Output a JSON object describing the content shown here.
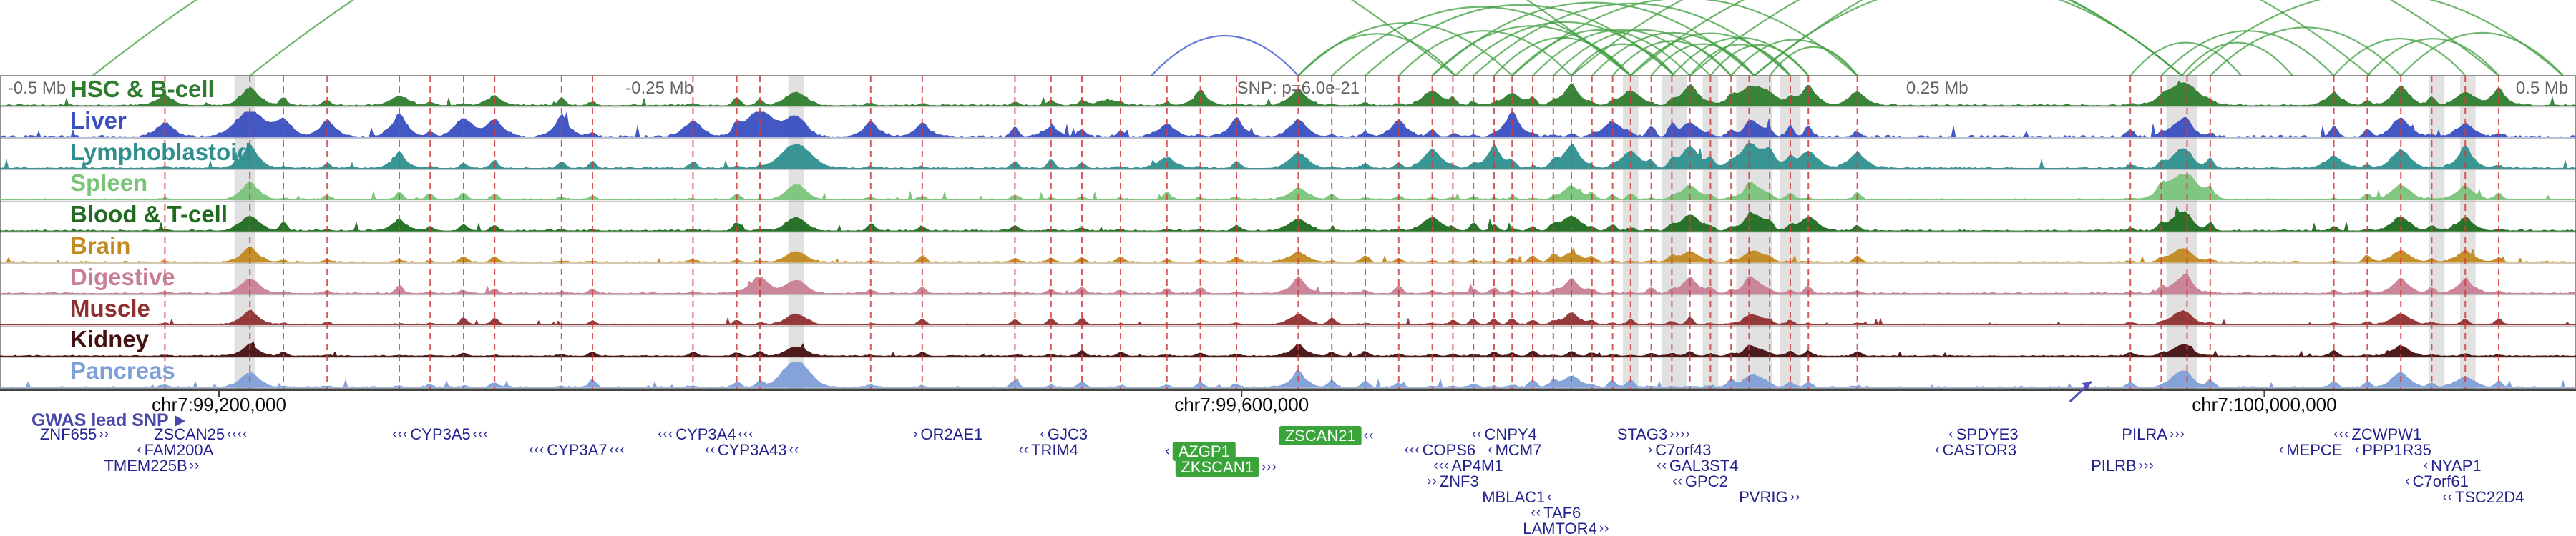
{
  "chart_data": {
    "type": "area",
    "title": "Chromatin accessibility tracks and interaction arcs around GWAS lead SNP (chr7 locus)",
    "noise_seed": 42,
    "colors": {
      "band": "#c9c9c9",
      "snp_line": "#d43c3c",
      "arc_green": "#3d9e3d",
      "arc_blue": "#3050c8",
      "gene_text": "#23238f",
      "gene_highlight": "#3aa33a",
      "axis": "#444444",
      "pointer": "#5353b5"
    },
    "scale_labels": [
      {
        "text": "-0.5 Mb",
        "f": 0.003,
        "align": "left"
      },
      {
        "text": "-0.25 Mb",
        "f": 0.256,
        "align": "center"
      },
      {
        "text": "SNP: p=6.0e-21",
        "f": 0.504,
        "align": "center"
      },
      {
        "text": "0.25 Mb",
        "f": 0.752,
        "align": "center"
      },
      {
        "text": "0.5 Mb",
        "f": 0.997,
        "align": "right"
      }
    ],
    "tracks": [
      {
        "name": "HSC & B-cell",
        "color": "#2e7d2e",
        "noise": 1.0,
        "peaks": [
          [
            0.064,
            0.25
          ],
          [
            0.097,
            0.55
          ],
          [
            0.155,
            0.3
          ],
          [
            0.192,
            0.2
          ],
          [
            0.309,
            0.5
          ],
          [
            0.43,
            0.2
          ],
          [
            0.466,
            0.3
          ],
          [
            0.504,
            0.45
          ],
          [
            0.556,
            0.5
          ],
          [
            0.587,
            0.4
          ],
          [
            0.61,
            0.55
          ],
          [
            0.633,
            0.5
          ],
          [
            0.656,
            0.6
          ],
          [
            0.681,
            0.7,
            10
          ],
          [
            0.702,
            0.5
          ],
          [
            0.721,
            0.4
          ],
          [
            0.847,
            0.8,
            10
          ],
          [
            0.906,
            0.3
          ],
          [
            0.932,
            0.55
          ],
          [
            0.957,
            0.45
          ],
          [
            0.97,
            0.35
          ]
        ]
      },
      {
        "name": "Liver",
        "color": "#3a4fc0",
        "noise": 1.2,
        "peaks": [
          [
            0.064,
            0.4
          ],
          [
            0.097,
            0.9,
            9
          ],
          [
            0.11,
            0.5
          ],
          [
            0.127,
            0.4
          ],
          [
            0.155,
            0.55
          ],
          [
            0.18,
            0.6
          ],
          [
            0.192,
            0.5
          ],
          [
            0.218,
            0.45
          ],
          [
            0.269,
            0.5
          ],
          [
            0.295,
            0.95,
            9
          ],
          [
            0.309,
            0.75
          ],
          [
            0.338,
            0.35
          ],
          [
            0.358,
            0.3
          ],
          [
            0.408,
            0.25
          ],
          [
            0.453,
            0.35
          ],
          [
            0.48,
            0.4
          ],
          [
            0.504,
            0.5
          ],
          [
            0.543,
            0.4
          ],
          [
            0.587,
            0.55
          ],
          [
            0.626,
            0.5
          ],
          [
            0.656,
            0.45
          ],
          [
            0.681,
            0.5
          ],
          [
            0.847,
            0.6
          ],
          [
            0.932,
            0.6
          ],
          [
            0.957,
            0.4
          ]
        ]
      },
      {
        "name": "Lymphoblastoid",
        "color": "#2f8f8f",
        "noise": 1.0,
        "peaks": [
          [
            0.097,
            0.6
          ],
          [
            0.155,
            0.3
          ],
          [
            0.309,
            0.9,
            9
          ],
          [
            0.453,
            0.3
          ],
          [
            0.504,
            0.5
          ],
          [
            0.556,
            0.6
          ],
          [
            0.58,
            0.5
          ],
          [
            0.61,
            0.65
          ],
          [
            0.633,
            0.55
          ],
          [
            0.656,
            0.7
          ],
          [
            0.681,
            0.75,
            10
          ],
          [
            0.702,
            0.55
          ],
          [
            0.721,
            0.45
          ],
          [
            0.847,
            0.7
          ],
          [
            0.906,
            0.35
          ],
          [
            0.932,
            0.6
          ],
          [
            0.957,
            0.5
          ]
        ]
      },
      {
        "name": "Spleen",
        "color": "#7ac47a",
        "noise": 0.8,
        "peaks": [
          [
            0.097,
            0.5
          ],
          [
            0.309,
            0.55
          ],
          [
            0.504,
            0.35
          ],
          [
            0.61,
            0.4
          ],
          [
            0.656,
            0.45
          ],
          [
            0.681,
            0.5
          ],
          [
            0.847,
            0.9,
            10
          ],
          [
            0.932,
            0.5
          ],
          [
            0.957,
            0.4
          ]
        ]
      },
      {
        "name": "Blood & T-cell",
        "color": "#1f6b1f",
        "noise": 0.9,
        "peaks": [
          [
            0.097,
            0.5
          ],
          [
            0.155,
            0.25
          ],
          [
            0.309,
            0.5
          ],
          [
            0.504,
            0.4
          ],
          [
            0.556,
            0.45
          ],
          [
            0.61,
            0.5
          ],
          [
            0.656,
            0.55
          ],
          [
            0.681,
            0.6
          ],
          [
            0.702,
            0.45
          ],
          [
            0.847,
            0.7
          ],
          [
            0.932,
            0.45
          ],
          [
            0.957,
            0.35
          ]
        ]
      },
      {
        "name": "Brain",
        "color": "#c28a20",
        "noise": 0.7,
        "peaks": [
          [
            0.097,
            0.4
          ],
          [
            0.309,
            0.4
          ],
          [
            0.504,
            0.3
          ],
          [
            0.61,
            0.3
          ],
          [
            0.656,
            0.35
          ],
          [
            0.681,
            0.4
          ],
          [
            0.847,
            0.5
          ],
          [
            0.932,
            0.35
          ],
          [
            0.957,
            0.3
          ]
        ]
      },
      {
        "name": "Digestive",
        "color": "#c87f93",
        "noise": 0.8,
        "peaks": [
          [
            0.097,
            0.5
          ],
          [
            0.295,
            0.55
          ],
          [
            0.309,
            0.5
          ],
          [
            0.504,
            0.35
          ],
          [
            0.61,
            0.35
          ],
          [
            0.656,
            0.4
          ],
          [
            0.681,
            0.45
          ],
          [
            0.847,
            0.55
          ],
          [
            0.932,
            0.4
          ],
          [
            0.957,
            0.35
          ]
        ]
      },
      {
        "name": "Muscle",
        "color": "#8f2f2f",
        "noise": 0.7,
        "peaks": [
          [
            0.097,
            0.4
          ],
          [
            0.309,
            0.4
          ],
          [
            0.504,
            0.3
          ],
          [
            0.61,
            0.3
          ],
          [
            0.681,
            0.35
          ],
          [
            0.847,
            0.5
          ],
          [
            0.932,
            0.35
          ]
        ]
      },
      {
        "name": "Kidney",
        "color": "#451010",
        "noise": 0.6,
        "peaks": [
          [
            0.097,
            0.3
          ],
          [
            0.309,
            0.35
          ],
          [
            0.504,
            0.25
          ],
          [
            0.681,
            0.3
          ],
          [
            0.847,
            0.4
          ],
          [
            0.932,
            0.3
          ]
        ]
      },
      {
        "name": "Pancreas",
        "color": "#7f9fd8",
        "noise": 0.8,
        "peaks": [
          [
            0.097,
            0.5
          ],
          [
            0.309,
            1.0,
            8
          ],
          [
            0.504,
            0.35
          ],
          [
            0.61,
            0.35
          ],
          [
            0.681,
            0.45
          ],
          [
            0.847,
            0.6
          ],
          [
            0.932,
            0.45
          ],
          [
            0.957,
            0.35
          ]
        ]
      }
    ],
    "snp_lines": [
      0.064,
      0.097,
      0.11,
      0.127,
      0.155,
      0.167,
      0.18,
      0.192,
      0.218,
      0.23,
      0.269,
      0.286,
      0.295,
      0.338,
      0.358,
      0.394,
      0.408,
      0.42,
      0.435,
      0.453,
      0.466,
      0.48,
      0.504,
      0.517,
      0.53,
      0.543,
      0.556,
      0.564,
      0.572,
      0.58,
      0.587,
      0.595,
      0.603,
      0.61,
      0.618,
      0.626,
      0.633,
      0.641,
      0.649,
      0.656,
      0.664,
      0.672,
      0.679,
      0.687,
      0.695,
      0.702,
      0.721,
      0.827,
      0.839,
      0.849,
      0.858,
      0.906,
      0.919,
      0.932,
      0.944,
      0.957,
      0.97
    ],
    "bands": [
      [
        0.095,
        0.008
      ],
      [
        0.309,
        0.006
      ],
      [
        0.633,
        0.006
      ],
      [
        0.65,
        0.01
      ],
      [
        0.664,
        0.006
      ],
      [
        0.681,
        0.014
      ],
      [
        0.695,
        0.008
      ],
      [
        0.847,
        0.012
      ],
      [
        0.946,
        0.006
      ],
      [
        0.958,
        0.006
      ]
    ],
    "arcs": [
      [
        0.036,
        0.565,
        "g"
      ],
      [
        0.097,
        0.633,
        "g"
      ],
      [
        0.447,
        0.504,
        "b"
      ],
      [
        0.504,
        0.565,
        "g"
      ],
      [
        0.504,
        0.587,
        "g"
      ],
      [
        0.517,
        0.633,
        "g"
      ],
      [
        0.53,
        0.65,
        "g"
      ],
      [
        0.543,
        0.61,
        "g"
      ],
      [
        0.556,
        0.633,
        "g"
      ],
      [
        0.556,
        0.681,
        "g"
      ],
      [
        0.565,
        0.65,
        "g"
      ],
      [
        0.572,
        0.695,
        "g"
      ],
      [
        0.58,
        0.633,
        "g"
      ],
      [
        0.587,
        0.656,
        "g"
      ],
      [
        0.587,
        0.721,
        "g"
      ],
      [
        0.595,
        0.664,
        "g"
      ],
      [
        0.603,
        0.672,
        "g"
      ],
      [
        0.61,
        0.65,
        "g"
      ],
      [
        0.61,
        0.847,
        "g"
      ],
      [
        0.618,
        0.681,
        "g"
      ],
      [
        0.626,
        0.672,
        "g"
      ],
      [
        0.633,
        0.695,
        "g"
      ],
      [
        0.633,
        0.847,
        "g"
      ],
      [
        0.641,
        0.681,
        "g"
      ],
      [
        0.649,
        0.702,
        "g"
      ],
      [
        0.656,
        0.695,
        "g"
      ],
      [
        0.656,
        0.92,
        "g"
      ],
      [
        0.664,
        0.702,
        "g"
      ],
      [
        0.672,
        0.721,
        "g"
      ],
      [
        0.681,
        0.97,
        "g"
      ],
      [
        0.687,
        0.721,
        "g"
      ],
      [
        0.681,
        0.847,
        "g"
      ],
      [
        0.827,
        0.87,
        "g"
      ],
      [
        0.839,
        0.906,
        "g"
      ],
      [
        0.847,
        0.89,
        "g"
      ],
      [
        0.849,
        0.995,
        "g"
      ],
      [
        0.858,
        0.932,
        "g"
      ],
      [
        0.906,
        0.957,
        "g"
      ],
      [
        0.919,
        0.97,
        "g"
      ],
      [
        0.932,
        0.995,
        "g"
      ]
    ],
    "axis": {
      "labels": [
        {
          "text": "chr7:99,200,000",
          "f": 0.085
        },
        {
          "text": "chr7:99,600,000",
          "f": 0.482
        },
        {
          "text": "chr7:100,000,000",
          "f": 0.879
        }
      ],
      "lead_snp_label": "GWAS lead SNP",
      "pointer_f": 0.808
    },
    "genes": [
      {
        "name": "ZNF655",
        "f": 0.029,
        "row": 0,
        "dir": "+",
        "al": 0,
        "ar": 2,
        "hl": false
      },
      {
        "name": "ZSCAN25",
        "f": 0.078,
        "row": 0,
        "dir": "-",
        "al": 0,
        "ar": 4,
        "hl": false
      },
      {
        "name": "FAM200A",
        "f": 0.068,
        "row": 1,
        "dir": "-",
        "al": 1,
        "ar": 0,
        "hl": false
      },
      {
        "name": "TMEM225B",
        "f": 0.059,
        "row": 2,
        "dir": "+",
        "al": 0,
        "ar": 2,
        "hl": false
      },
      {
        "name": "CYP3A5",
        "f": 0.171,
        "row": 0,
        "dir": "-",
        "al": 3,
        "ar": 3,
        "hl": false
      },
      {
        "name": "CYP3A7",
        "f": 0.224,
        "row": 1,
        "dir": "-",
        "al": 3,
        "ar": 3,
        "hl": false
      },
      {
        "name": "CYP3A4",
        "f": 0.274,
        "row": 0,
        "dir": "-",
        "al": 3,
        "ar": 3,
        "hl": false
      },
      {
        "name": "CYP3A43",
        "f": 0.292,
        "row": 1,
        "dir": "-",
        "al": 2,
        "ar": 2,
        "hl": false
      },
      {
        "name": "OR2AE1",
        "f": 0.368,
        "row": 0,
        "dir": "+",
        "al": 1,
        "ar": 0,
        "hl": false
      },
      {
        "name": "TRIM4",
        "f": 0.407,
        "row": 1,
        "dir": "-",
        "al": 2,
        "ar": 0,
        "hl": false
      },
      {
        "name": "GJC3",
        "f": 0.413,
        "row": 0,
        "dir": "-",
        "al": 1,
        "ar": 0,
        "hl": false
      },
      {
        "name": "AZGP1",
        "f": 0.466,
        "row": 1,
        "dir": "-",
        "al": 1,
        "ar": 0,
        "hl": true
      },
      {
        "name": "ZKSCAN1",
        "f": 0.476,
        "row": 2,
        "dir": "+",
        "al": 0,
        "ar": 3,
        "hl": true
      },
      {
        "name": "ZSCAN21",
        "f": 0.515,
        "row": 0,
        "dir": "-",
        "al": 0,
        "ar": 2,
        "hl": true
      },
      {
        "name": "COPS6",
        "f": 0.559,
        "row": 1,
        "dir": "-",
        "al": 3,
        "ar": 0,
        "hl": false
      },
      {
        "name": "MCM7",
        "f": 0.588,
        "row": 1,
        "dir": "-",
        "al": 1,
        "ar": 0,
        "hl": false
      },
      {
        "name": "AP4M1",
        "f": 0.57,
        "row": 2,
        "dir": "-",
        "al": 3,
        "ar": 0,
        "hl": false
      },
      {
        "name": "ZNF3",
        "f": 0.564,
        "row": 3,
        "dir": "+",
        "al": 2,
        "ar": 0,
        "hl": false
      },
      {
        "name": "MBLAC1",
        "f": 0.589,
        "row": 4,
        "dir": "-",
        "al": 0,
        "ar": 1,
        "hl": false
      },
      {
        "name": "TAF6",
        "f": 0.604,
        "row": 5,
        "dir": "-",
        "al": 2,
        "ar": 0,
        "hl": false
      },
      {
        "name": "LAMTOR4",
        "f": 0.608,
        "row": 6,
        "dir": "+",
        "al": 0,
        "ar": 2,
        "hl": false
      },
      {
        "name": "CNPY4",
        "f": 0.584,
        "row": 0,
        "dir": "-",
        "al": 2,
        "ar": 0,
        "hl": false
      },
      {
        "name": "STAG3",
        "f": 0.642,
        "row": 0,
        "dir": "+",
        "al": 0,
        "ar": 4,
        "hl": false
      },
      {
        "name": "C7orf43",
        "f": 0.652,
        "row": 1,
        "dir": "+",
        "al": 1,
        "ar": 0,
        "hl": false
      },
      {
        "name": "GAL3ST4",
        "f": 0.659,
        "row": 2,
        "dir": "-",
        "al": 2,
        "ar": 0,
        "hl": false
      },
      {
        "name": "GPC2",
        "f": 0.66,
        "row": 3,
        "dir": "-",
        "al": 2,
        "ar": 0,
        "hl": false
      },
      {
        "name": "PVRIG",
        "f": 0.687,
        "row": 4,
        "dir": "+",
        "al": 0,
        "ar": 2,
        "hl": false
      },
      {
        "name": "SPDYE3",
        "f": 0.77,
        "row": 0,
        "dir": "-",
        "al": 1,
        "ar": 0,
        "hl": false
      },
      {
        "name": "CASTOR3",
        "f": 0.767,
        "row": 1,
        "dir": "-",
        "al": 1,
        "ar": 0,
        "hl": false
      },
      {
        "name": "PILRA",
        "f": 0.836,
        "row": 0,
        "dir": "+",
        "al": 0,
        "ar": 3,
        "hl": false
      },
      {
        "name": "PILRB",
        "f": 0.824,
        "row": 2,
        "dir": "+",
        "al": 0,
        "ar": 3,
        "hl": false
      },
      {
        "name": "ZCWPW1",
        "f": 0.923,
        "row": 0,
        "dir": "-",
        "al": 3,
        "ar": 0,
        "hl": false
      },
      {
        "name": "MEPCE",
        "f": 0.897,
        "row": 1,
        "dir": "-",
        "al": 1,
        "ar": 0,
        "hl": false
      },
      {
        "name": "PPP1R35",
        "f": 0.929,
        "row": 1,
        "dir": "-",
        "al": 1,
        "ar": 0,
        "hl": false
      },
      {
        "name": "NYAP1",
        "f": 0.952,
        "row": 2,
        "dir": "-",
        "al": 1,
        "ar": 0,
        "hl": false
      },
      {
        "name": "C7orf61",
        "f": 0.946,
        "row": 3,
        "dir": "-",
        "al": 1,
        "ar": 0,
        "hl": false
      },
      {
        "name": "TSC22D4",
        "f": 0.964,
        "row": 4,
        "dir": "-",
        "al": 2,
        "ar": 0,
        "hl": false
      }
    ]
  }
}
